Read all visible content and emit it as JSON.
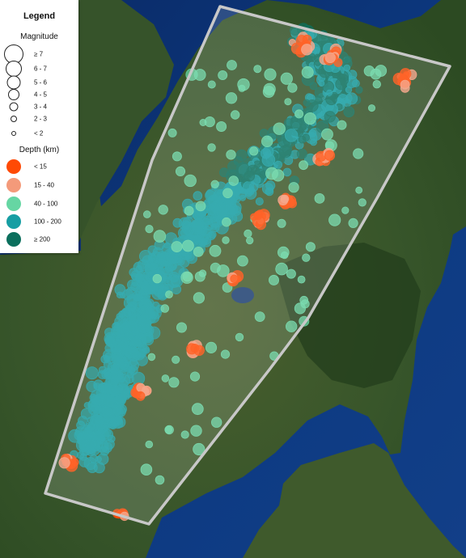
{
  "legend": {
    "title": "Legend",
    "magnitude_heading": "Magnitude",
    "magnitude_classes": [
      {
        "label": "≥ 7",
        "size": 24
      },
      {
        "label": "6 - 7",
        "size": 20
      },
      {
        "label": "5 - 6",
        "size": 17
      },
      {
        "label": "4 - 5",
        "size": 14
      },
      {
        "label": "3 - 4",
        "size": 11
      },
      {
        "label": "2 - 3",
        "size": 8
      },
      {
        "label": "< 2",
        "size": 6
      }
    ],
    "depth_heading": "Depth (km)",
    "depth_classes": [
      {
        "label": "< 15",
        "color": "#ff4a05"
      },
      {
        "label": "15 - 40",
        "color": "#f49a7a"
      },
      {
        "label": "40 - 100",
        "color": "#66d6a3"
      },
      {
        "label": "100 - 200",
        "color": "#169ea3"
      },
      {
        "label": "≥ 200",
        "color": "#0b6f5d"
      }
    ]
  },
  "colors": {
    "ocean": "#0d2f6b",
    "land": "#3c5a28",
    "forest": "#243f1d",
    "region_outline": "#c8c8c8"
  }
}
